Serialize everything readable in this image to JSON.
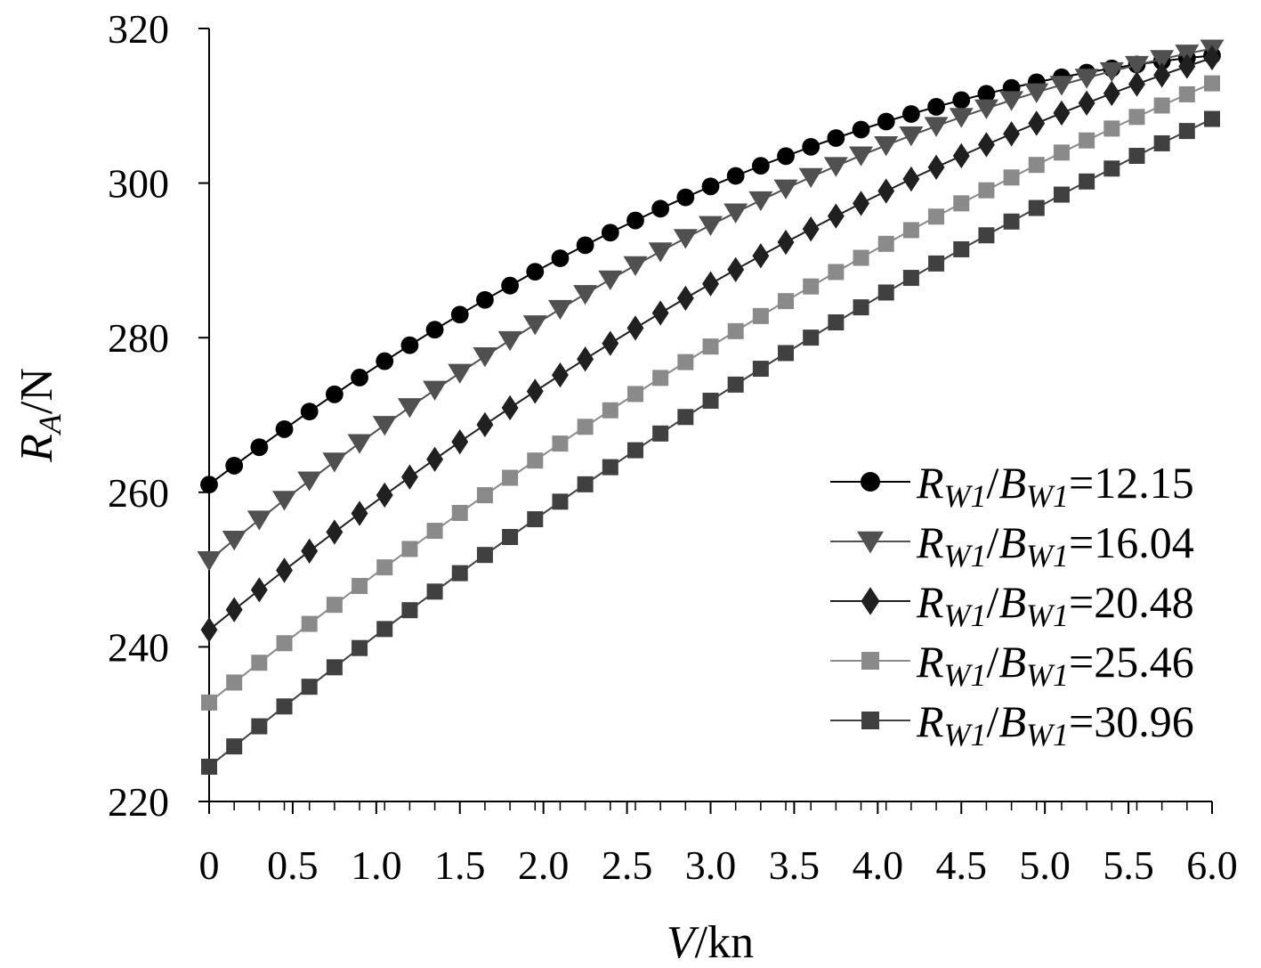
{
  "chart_data": {
    "type": "line",
    "xlabel": {
      "var": "V",
      "unit": "/kn"
    },
    "ylabel": {
      "var": "R",
      "sub": "A",
      "unit": "/N"
    },
    "xlim": [
      0,
      6
    ],
    "ylim": [
      220,
      320
    ],
    "x_ticks": [
      "0",
      "0.5",
      "1.0",
      "1.5",
      "2.0",
      "2.5",
      "3.0",
      "3.5",
      "4.0",
      "4.5",
      "5.0",
      "5.5",
      "6.0"
    ],
    "y_ticks": [
      "220",
      "240",
      "260",
      "280",
      "300",
      "320"
    ],
    "grid": false,
    "legend_position": "right",
    "x": [
      0,
      0.15,
      0.3,
      0.45,
      0.6,
      0.75,
      0.9,
      1.05,
      1.2,
      1.35,
      1.5,
      1.65,
      1.8,
      1.95,
      2.1,
      2.25,
      2.4,
      2.55,
      2.7,
      2.85,
      3.0,
      3.15,
      3.3,
      3.45,
      3.6,
      3.75,
      3.9,
      4.05,
      4.2,
      4.35,
      4.5,
      4.65,
      4.8,
      4.95,
      5.1,
      5.25,
      5.4,
      5.55,
      5.7,
      5.85,
      6.0
    ],
    "series": [
      {
        "name": "R_W1/B_W1=12.15",
        "label_prefix": "=12.15",
        "color": "#000000",
        "marker": "circle",
        "start": 261.0,
        "end": 316.5,
        "shape": 0.78
      },
      {
        "name": "R_W1/B_W1=16.04",
        "label_prefix": "=16.04",
        "color": "#505050",
        "marker": "triangle-down",
        "start": 251.2,
        "end": 317.4,
        "shape": 0.62
      },
      {
        "name": "R_W1/B_W1=20.48",
        "label_prefix": "=20.48",
        "color": "#202020",
        "marker": "diamond",
        "start": 242.2,
        "end": 316.2,
        "shape": 0.42
      },
      {
        "name": "R_W1/B_W1=25.46",
        "label_prefix": "=25.46",
        "color": "#8a8a8a",
        "marker": "square",
        "start": 232.8,
        "end": 312.9,
        "shape": 0.3
      },
      {
        "name": "R_W1/B_W1=30.96",
        "label_prefix": "=30.96",
        "color": "#404040",
        "marker": "square",
        "start": 224.5,
        "end": 308.3,
        "shape": 0.26
      }
    ]
  }
}
